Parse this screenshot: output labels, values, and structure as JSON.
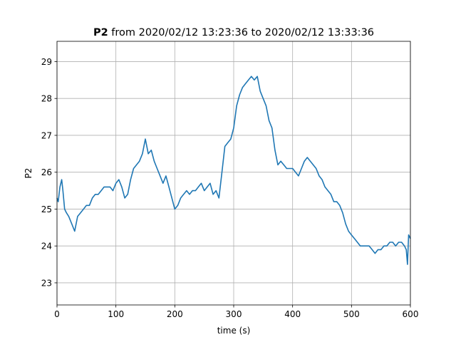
{
  "chart_data": {
    "type": "line",
    "title": {
      "bold": "P2",
      "rest": " from 2020/02/12 13:23:36 to 2020/02/12 13:33:36"
    },
    "xlabel": "time (s)",
    "ylabel": "P2",
    "xlim": [
      0,
      600
    ],
    "ylim": [
      22.4,
      29.55
    ],
    "xticks": [
      0,
      100,
      200,
      300,
      400,
      500,
      600
    ],
    "xtick_labels": [
      "0",
      "100",
      "200",
      "300",
      "400",
      "500",
      "600"
    ],
    "yticks": [
      23,
      24,
      25,
      26,
      27,
      28,
      29
    ],
    "ytick_labels": [
      "23",
      "24",
      "25",
      "26",
      "27",
      "28",
      "29"
    ],
    "grid": true,
    "legend": "none",
    "series": [
      {
        "color": "#1f77b4",
        "x": [
          0,
          2,
          5,
          8,
          10,
          13,
          16,
          20,
          25,
          30,
          35,
          40,
          45,
          50,
          55,
          60,
          65,
          70,
          75,
          80,
          85,
          90,
          95,
          100,
          105,
          110,
          115,
          120,
          125,
          130,
          135,
          140,
          145,
          150,
          155,
          160,
          165,
          170,
          175,
          180,
          185,
          190,
          195,
          200,
          205,
          210,
          215,
          220,
          225,
          230,
          235,
          240,
          245,
          250,
          255,
          260,
          265,
          270,
          275,
          280,
          285,
          290,
          295,
          300,
          305,
          310,
          315,
          320,
          325,
          330,
          335,
          340,
          345,
          350,
          355,
          360,
          365,
          370,
          375,
          380,
          385,
          390,
          395,
          400,
          405,
          410,
          415,
          420,
          425,
          430,
          435,
          440,
          445,
          450,
          455,
          460,
          465,
          470,
          475,
          480,
          485,
          490,
          495,
          500,
          505,
          510,
          515,
          520,
          525,
          530,
          535,
          540,
          545,
          550,
          555,
          560,
          565,
          570,
          575,
          580,
          585,
          590,
          593,
          595,
          597,
          600
        ],
        "y": [
          25.3,
          25.2,
          25.6,
          25.8,
          25.5,
          25.0,
          24.9,
          24.8,
          24.6,
          24.4,
          24.8,
          24.9,
          25.0,
          25.1,
          25.1,
          25.3,
          25.4,
          25.4,
          25.5,
          25.6,
          25.6,
          25.6,
          25.5,
          25.7,
          25.8,
          25.6,
          25.3,
          25.4,
          25.8,
          26.1,
          26.2,
          26.3,
          26.5,
          26.9,
          26.5,
          26.6,
          26.3,
          26.1,
          25.9,
          25.7,
          25.9,
          25.6,
          25.3,
          25.0,
          25.1,
          25.3,
          25.4,
          25.5,
          25.4,
          25.5,
          25.5,
          25.6,
          25.7,
          25.5,
          25.6,
          25.7,
          25.4,
          25.5,
          25.3,
          26.0,
          26.7,
          26.8,
          26.9,
          27.2,
          27.8,
          28.1,
          28.3,
          28.4,
          28.5,
          28.6,
          28.5,
          28.6,
          28.2,
          28.0,
          27.8,
          27.4,
          27.2,
          26.6,
          26.2,
          26.3,
          26.2,
          26.1,
          26.1,
          26.1,
          26.0,
          25.9,
          26.1,
          26.3,
          26.4,
          26.3,
          26.2,
          26.1,
          25.9,
          25.8,
          25.6,
          25.5,
          25.4,
          25.2,
          25.2,
          25.1,
          24.9,
          24.6,
          24.4,
          24.3,
          24.2,
          24.1,
          24.0,
          24.0,
          24.0,
          24.0,
          23.9,
          23.8,
          23.9,
          23.9,
          24.0,
          24.0,
          24.1,
          24.1,
          24.0,
          24.1,
          24.1,
          24.0,
          23.9,
          23.5,
          24.3,
          24.2
        ]
      }
    ]
  }
}
